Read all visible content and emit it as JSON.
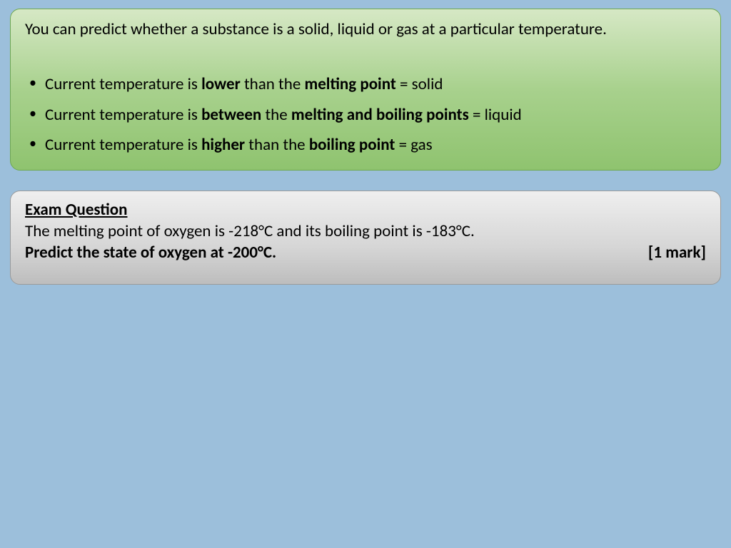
{
  "colors": {
    "page_bg": "#9cbfdb",
    "green_gradient": [
      "#d6e8c5",
      "#a8d18d",
      "#8fc36f"
    ],
    "green_border": "#6fa84f",
    "gray_gradient": [
      "#efefef",
      "#d6d6d6",
      "#bdbdbd"
    ],
    "gray_border": "#9a9a9a",
    "text": "#000000"
  },
  "typography": {
    "family": "Calibri",
    "body_size_pt": 17,
    "line_height": 1.25
  },
  "green_box": {
    "intro": "You can predict whether a substance is a solid, liquid or gas at a particular temperature.",
    "bullets": [
      {
        "pre": "Current temperature is ",
        "b1": "lower",
        "mid": " than the ",
        "b2": "melting point",
        "post": " = solid"
      },
      {
        "pre": "Current temperature is ",
        "b1": "between",
        "mid": " the ",
        "b2": "melting and boiling points",
        "post": " = liquid"
      },
      {
        "pre": "Current temperature is ",
        "b1": "higher",
        "mid": " than the ",
        "b2": "boiling point",
        "post": " = gas"
      }
    ]
  },
  "gray_box": {
    "title": "Exam Question",
    "line1": "The melting point of oxygen is -218°C and its boiling point is -183°C.",
    "prompt": "Predict the state of oxygen at -200°C.",
    "marks": "[1 mark]"
  }
}
